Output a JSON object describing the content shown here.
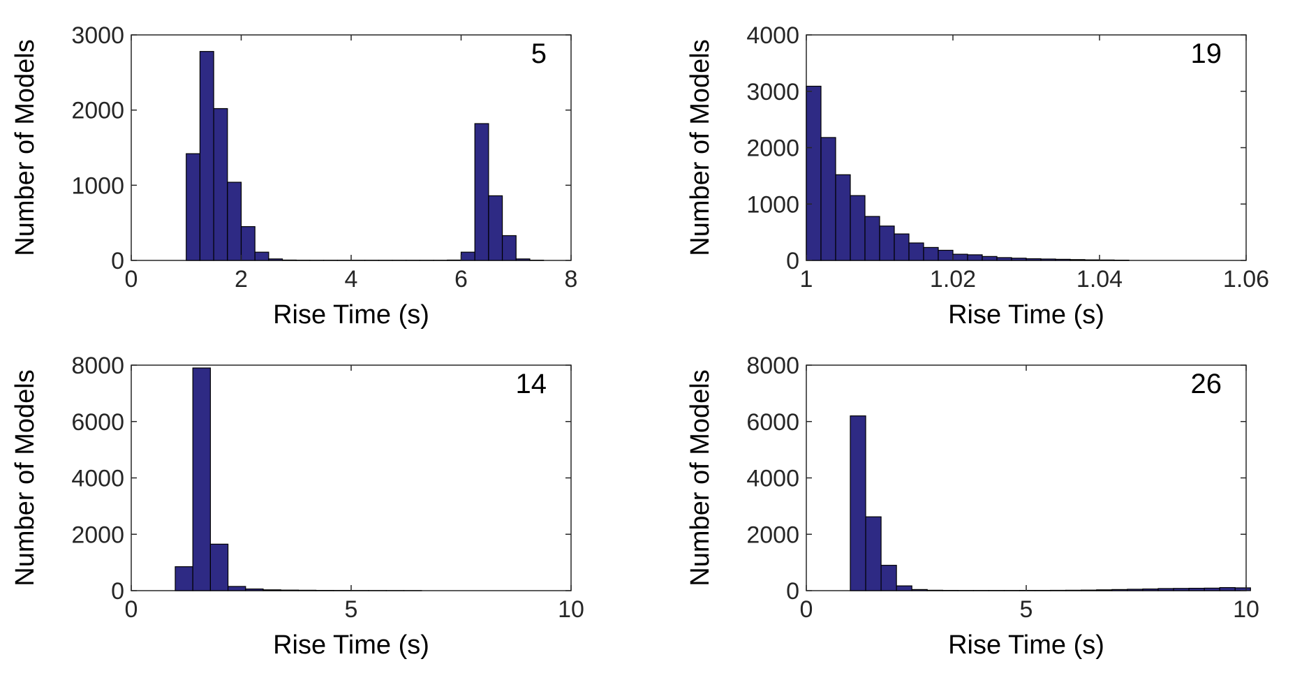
{
  "colors": {
    "bar_fill": "#2e2a84",
    "bar_edge": "#000000",
    "axis": "#262626"
  },
  "chart_data": [
    {
      "type": "bar",
      "panel_label": "5",
      "xlabel": "Rise Time (s)",
      "ylabel": "Number of Models",
      "xlim": [
        0,
        8
      ],
      "ylim": [
        0,
        3000
      ],
      "xticks": [
        0,
        2,
        4,
        6,
        8
      ],
      "xtick_labels": [
        "0",
        "2",
        "4",
        "6",
        "8"
      ],
      "yticks": [
        0,
        1000,
        2000,
        3000
      ],
      "ytick_labels": [
        "0",
        "1000",
        "2000",
        "3000"
      ],
      "grid": false,
      "bin_width": 0.25,
      "bin_starts": [
        1.0,
        1.25,
        1.5,
        1.75,
        2.0,
        2.25,
        2.5,
        2.75,
        3.0,
        3.25,
        3.5,
        3.75,
        4.0,
        4.25,
        4.5,
        4.75,
        5.0,
        5.25,
        5.5,
        5.75,
        6.0,
        6.25,
        6.5,
        6.75,
        7.0,
        7.25
      ],
      "values": [
        1420,
        2780,
        2020,
        1040,
        450,
        110,
        20,
        5,
        3,
        2,
        2,
        2,
        2,
        2,
        2,
        2,
        2,
        2,
        2,
        5,
        110,
        1820,
        860,
        330,
        20,
        3
      ]
    },
    {
      "type": "bar",
      "panel_label": "19",
      "xlabel": "Rise Time (s)",
      "ylabel": "Number of Models",
      "xlim": [
        1,
        1.06
      ],
      "ylim": [
        0,
        4000
      ],
      "xticks": [
        1,
        1.02,
        1.04,
        1.06
      ],
      "xtick_labels": [
        "1",
        "1.02",
        "1.04",
        "1.06"
      ],
      "yticks": [
        0,
        1000,
        2000,
        3000,
        4000
      ],
      "ytick_labels": [
        "0",
        "1000",
        "2000",
        "3000",
        "4000"
      ],
      "grid": false,
      "bin_width": 0.002,
      "bin_starts": [
        1.0,
        1.002,
        1.004,
        1.006,
        1.008,
        1.01,
        1.012,
        1.014,
        1.016,
        1.018,
        1.02,
        1.022,
        1.024,
        1.026,
        1.028,
        1.03,
        1.032,
        1.034,
        1.036,
        1.038,
        1.04,
        1.042
      ],
      "values": [
        3090,
        2180,
        1520,
        1150,
        780,
        610,
        470,
        310,
        230,
        180,
        110,
        100,
        70,
        50,
        40,
        30,
        25,
        20,
        15,
        10,
        8,
        5
      ]
    },
    {
      "type": "bar",
      "panel_label": "14",
      "xlabel": "Rise Time (s)",
      "ylabel": "Number of Models",
      "xlim": [
        0,
        10
      ],
      "ylim": [
        0,
        8000
      ],
      "xticks": [
        0,
        5,
        10
      ],
      "xtick_labels": [
        "0",
        "5",
        "10"
      ],
      "yticks": [
        0,
        2000,
        4000,
        6000,
        8000
      ],
      "ytick_labels": [
        "0",
        "2000",
        "4000",
        "6000",
        "8000"
      ],
      "grid": false,
      "bin_width": 0.4,
      "bin_starts": [
        1.0,
        1.4,
        1.8,
        2.2,
        2.6,
        3.0,
        3.4,
        3.8,
        4.2,
        4.6,
        5.0,
        5.4,
        5.8,
        6.2
      ],
      "values": [
        850,
        7900,
        1650,
        150,
        60,
        30,
        20,
        15,
        10,
        8,
        5,
        4,
        3,
        2
      ]
    },
    {
      "type": "bar",
      "panel_label": "26",
      "xlabel": "Rise Time (s)",
      "ylabel": "Number of Models",
      "xlim": [
        0,
        10
      ],
      "ylim": [
        0,
        8000
      ],
      "xticks": [
        0,
        5,
        10
      ],
      "xtick_labels": [
        "0",
        "5",
        "10"
      ],
      "yticks": [
        0,
        2000,
        4000,
        6000,
        8000
      ],
      "ytick_labels": [
        "0",
        "2000",
        "4000",
        "6000",
        "8000"
      ],
      "grid": false,
      "bin_width": 0.35,
      "bin_starts": [
        1.0,
        1.35,
        1.7,
        2.05,
        2.4,
        2.75,
        3.1,
        3.45,
        3.8,
        4.15,
        4.5,
        4.85,
        5.2,
        5.55,
        5.9,
        6.25,
        6.6,
        6.95,
        7.3,
        7.65,
        8.0,
        8.35,
        8.7,
        9.05,
        9.4,
        9.75
      ],
      "values": [
        6200,
        2620,
        900,
        170,
        40,
        15,
        10,
        8,
        8,
        8,
        8,
        10,
        10,
        12,
        15,
        20,
        30,
        40,
        50,
        60,
        75,
        80,
        85,
        90,
        110,
        100
      ]
    }
  ]
}
